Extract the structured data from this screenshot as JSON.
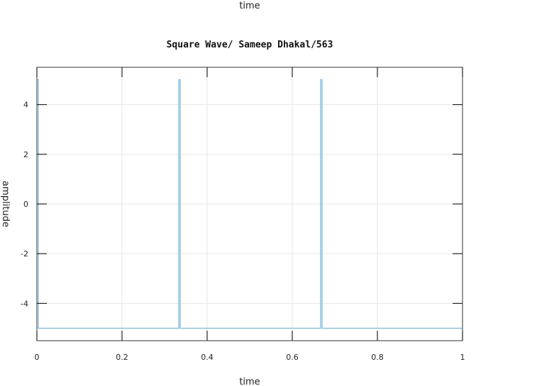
{
  "chart_data": {
    "type": "line",
    "title": "Square Wave/ Sameep Dhakal/563",
    "top_label": "time",
    "xlabel": "time",
    "ylabel": "amplitude",
    "xlim": [
      0,
      1
    ],
    "ylim": [
      -5.5,
      5.5
    ],
    "grid": true,
    "x_ticks": [
      0,
      0.2,
      0.4,
      0.6,
      0.8,
      1
    ],
    "x_tick_labels": [
      "0",
      "0.2",
      "0.4",
      "0.6",
      "0.8",
      "1"
    ],
    "y_ticks": [
      -4,
      -2,
      0,
      2,
      4
    ],
    "y_tick_labels": [
      "-4",
      "-2",
      "0",
      "2",
      "4"
    ],
    "series": [
      {
        "color": "#8fbfe0",
        "x": [
          0,
          0.0033,
          0.0033,
          0.3333,
          0.3333,
          0.3367,
          0.3367,
          0.6667,
          0.6667,
          0.67,
          0.67,
          1
        ],
        "y": [
          5,
          5,
          -5,
          -5,
          5,
          5,
          -5,
          -5,
          5,
          5,
          -5,
          -5
        ]
      }
    ]
  }
}
